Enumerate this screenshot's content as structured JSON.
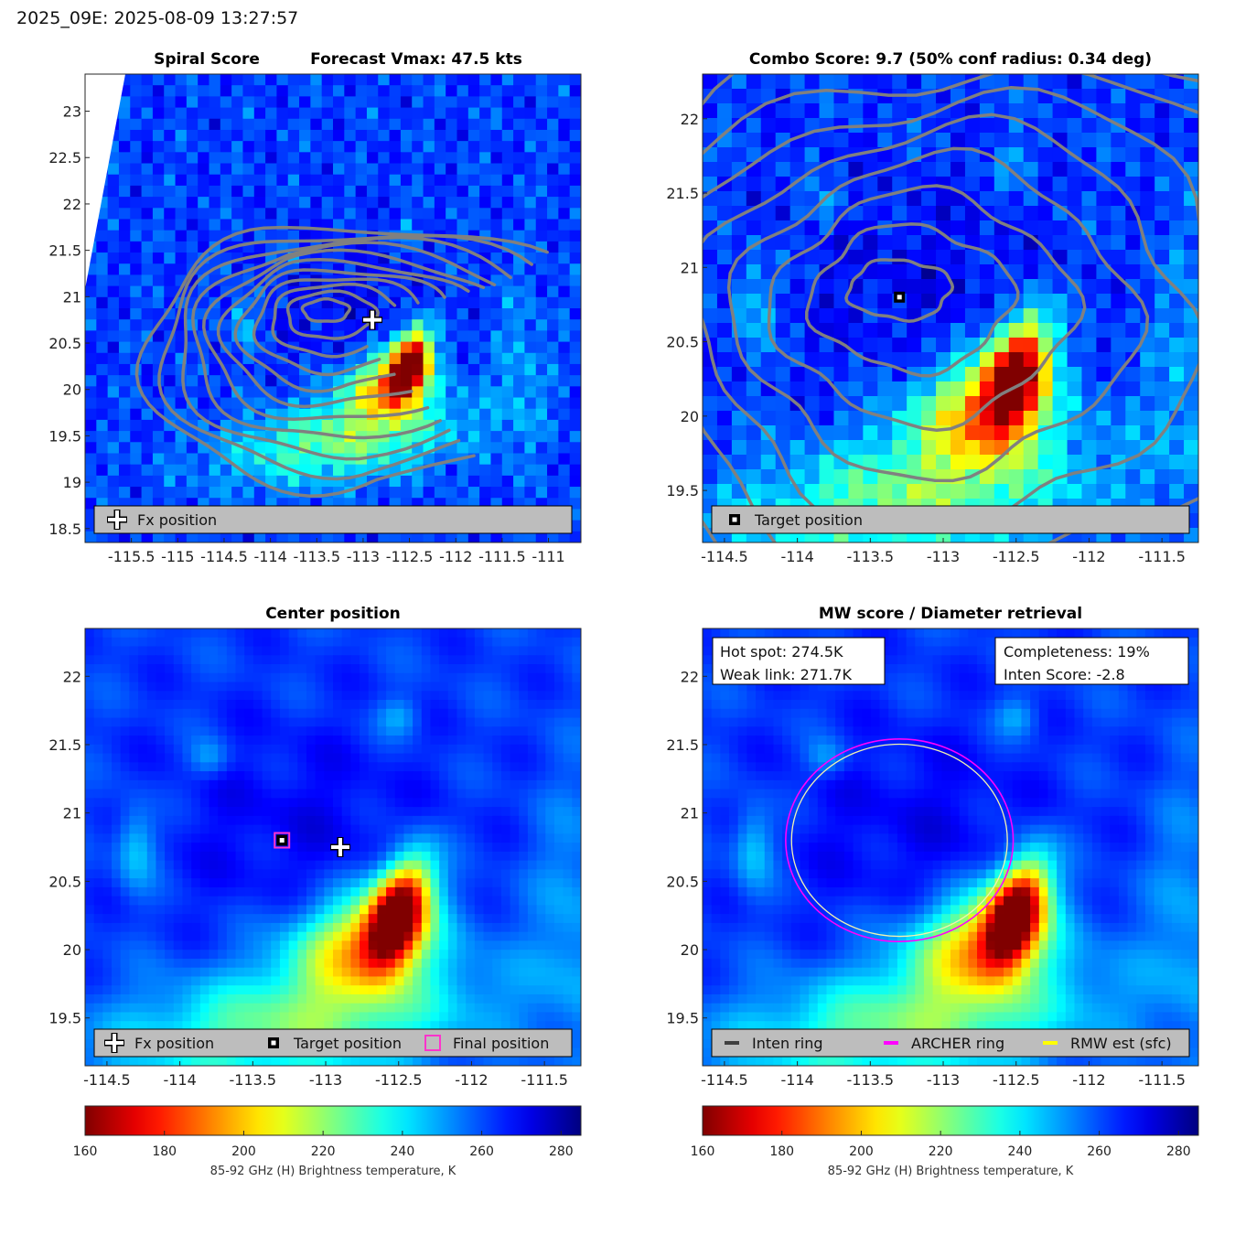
{
  "header": "2025_09E: 2025-08-09 13:27:57",
  "colors": {
    "contour": "#808080",
    "archer_ring": "#ff00ff",
    "rmw_ring": "#ffff00",
    "inten_ring": "#404040",
    "legend_bg": "#bdbdbd"
  },
  "colorbar": {
    "ticks": [
      "160",
      "180",
      "200",
      "220",
      "240",
      "260",
      "280"
    ],
    "min": 160,
    "max": 285,
    "label": "85-92 GHz (H) Brightness temperature, K"
  },
  "chart_data": [
    {
      "type": "heatmap",
      "id": "spiral",
      "title_left": "Spiral Score",
      "title_right": "Forecast Vmax: 47.5 kts",
      "xlim": [
        -116.0,
        -110.65
      ],
      "ylim": [
        18.35,
        23.4
      ],
      "xticks": [
        "-115.5",
        "-115",
        "-114.5",
        "-114",
        "-113.5",
        "-113",
        "-112.5",
        "-112",
        "-111.5",
        "-111"
      ],
      "yticks": [
        "18.5",
        "19",
        "19.5",
        "20",
        "20.5",
        "21",
        "21.5",
        "22",
        "22.5",
        "23"
      ],
      "xlabel": "",
      "ylabel": "",
      "markers": [
        {
          "type": "fx_cross",
          "lon": -112.9,
          "lat": 20.75
        }
      ],
      "contours": "spiral_rings",
      "legend": [
        {
          "symbol": "cross",
          "label": "Fx position"
        }
      ]
    },
    {
      "type": "heatmap",
      "id": "combo",
      "title": "Combo Score: 9.7  (50% conf radius: 0.34 deg)",
      "xlim": [
        -114.65,
        -111.25
      ],
      "ylim": [
        19.15,
        22.3
      ],
      "xticks": [
        "-114.5",
        "-114",
        "-113.5",
        "-113",
        "-112.5",
        "-112",
        "-111.5"
      ],
      "yticks": [
        "19.5",
        "20",
        "20.5",
        "21",
        "21.5",
        "22"
      ],
      "xlabel": "",
      "ylabel": "",
      "markers": [
        {
          "type": "target_square",
          "lon": -113.3,
          "lat": 20.8
        }
      ],
      "contours": "combo_rings",
      "legend": [
        {
          "symbol": "square",
          "label": "Target position"
        }
      ]
    },
    {
      "type": "heatmap",
      "id": "center",
      "title": "Center position",
      "xlim": [
        -114.65,
        -111.25
      ],
      "ylim": [
        19.15,
        22.35
      ],
      "xticks": [
        "-114.5",
        "-114",
        "-113.5",
        "-113",
        "-112.5",
        "-112",
        "-111.5"
      ],
      "yticks": [
        "19.5",
        "20",
        "20.5",
        "21",
        "21.5",
        "22"
      ],
      "xlabel": "",
      "ylabel": "",
      "markers": [
        {
          "type": "final_square",
          "lon": -113.3,
          "lat": 20.8
        },
        {
          "type": "target_square",
          "lon": -113.3,
          "lat": 20.8
        },
        {
          "type": "fx_cross",
          "lon": -112.9,
          "lat": 20.75
        }
      ],
      "legend": [
        {
          "symbol": "cross",
          "label": "Fx position"
        },
        {
          "symbol": "square",
          "label": "Target position"
        },
        {
          "symbol": "magenta_square",
          "label": "Final position"
        }
      ]
    },
    {
      "type": "heatmap",
      "id": "mw",
      "title": "MW score / Diameter retrieval",
      "xlim": [
        -114.65,
        -111.25
      ],
      "ylim": [
        19.15,
        22.35
      ],
      "xticks": [
        "-114.5",
        "-114",
        "-113.5",
        "-113",
        "-112.5",
        "-112",
        "-111.5"
      ],
      "yticks": [
        "19.5",
        "20",
        "20.5",
        "21",
        "21.5",
        "22"
      ],
      "xlabel": "",
      "ylabel": "",
      "rings": [
        {
          "name": "ARCHER ring",
          "lon": -113.3,
          "lat": 20.8,
          "radius_deg": 0.78
        },
        {
          "name": "RMW est (sfc)",
          "lon": -113.3,
          "lat": 20.8,
          "radius_deg": 0.74
        }
      ],
      "textboxes": {
        "left": [
          "Hot spot: 274.5K",
          "Weak link: 271.7K"
        ],
        "right": [
          "Completeness: 19%",
          "Inten Score: -2.8"
        ]
      },
      "legend": [
        {
          "symbol": "dark_line",
          "label": "Inten ring"
        },
        {
          "symbol": "magenta_line",
          "label": "ARCHER ring"
        },
        {
          "symbol": "yellow_line",
          "label": "RMW est (sfc)"
        }
      ]
    }
  ]
}
